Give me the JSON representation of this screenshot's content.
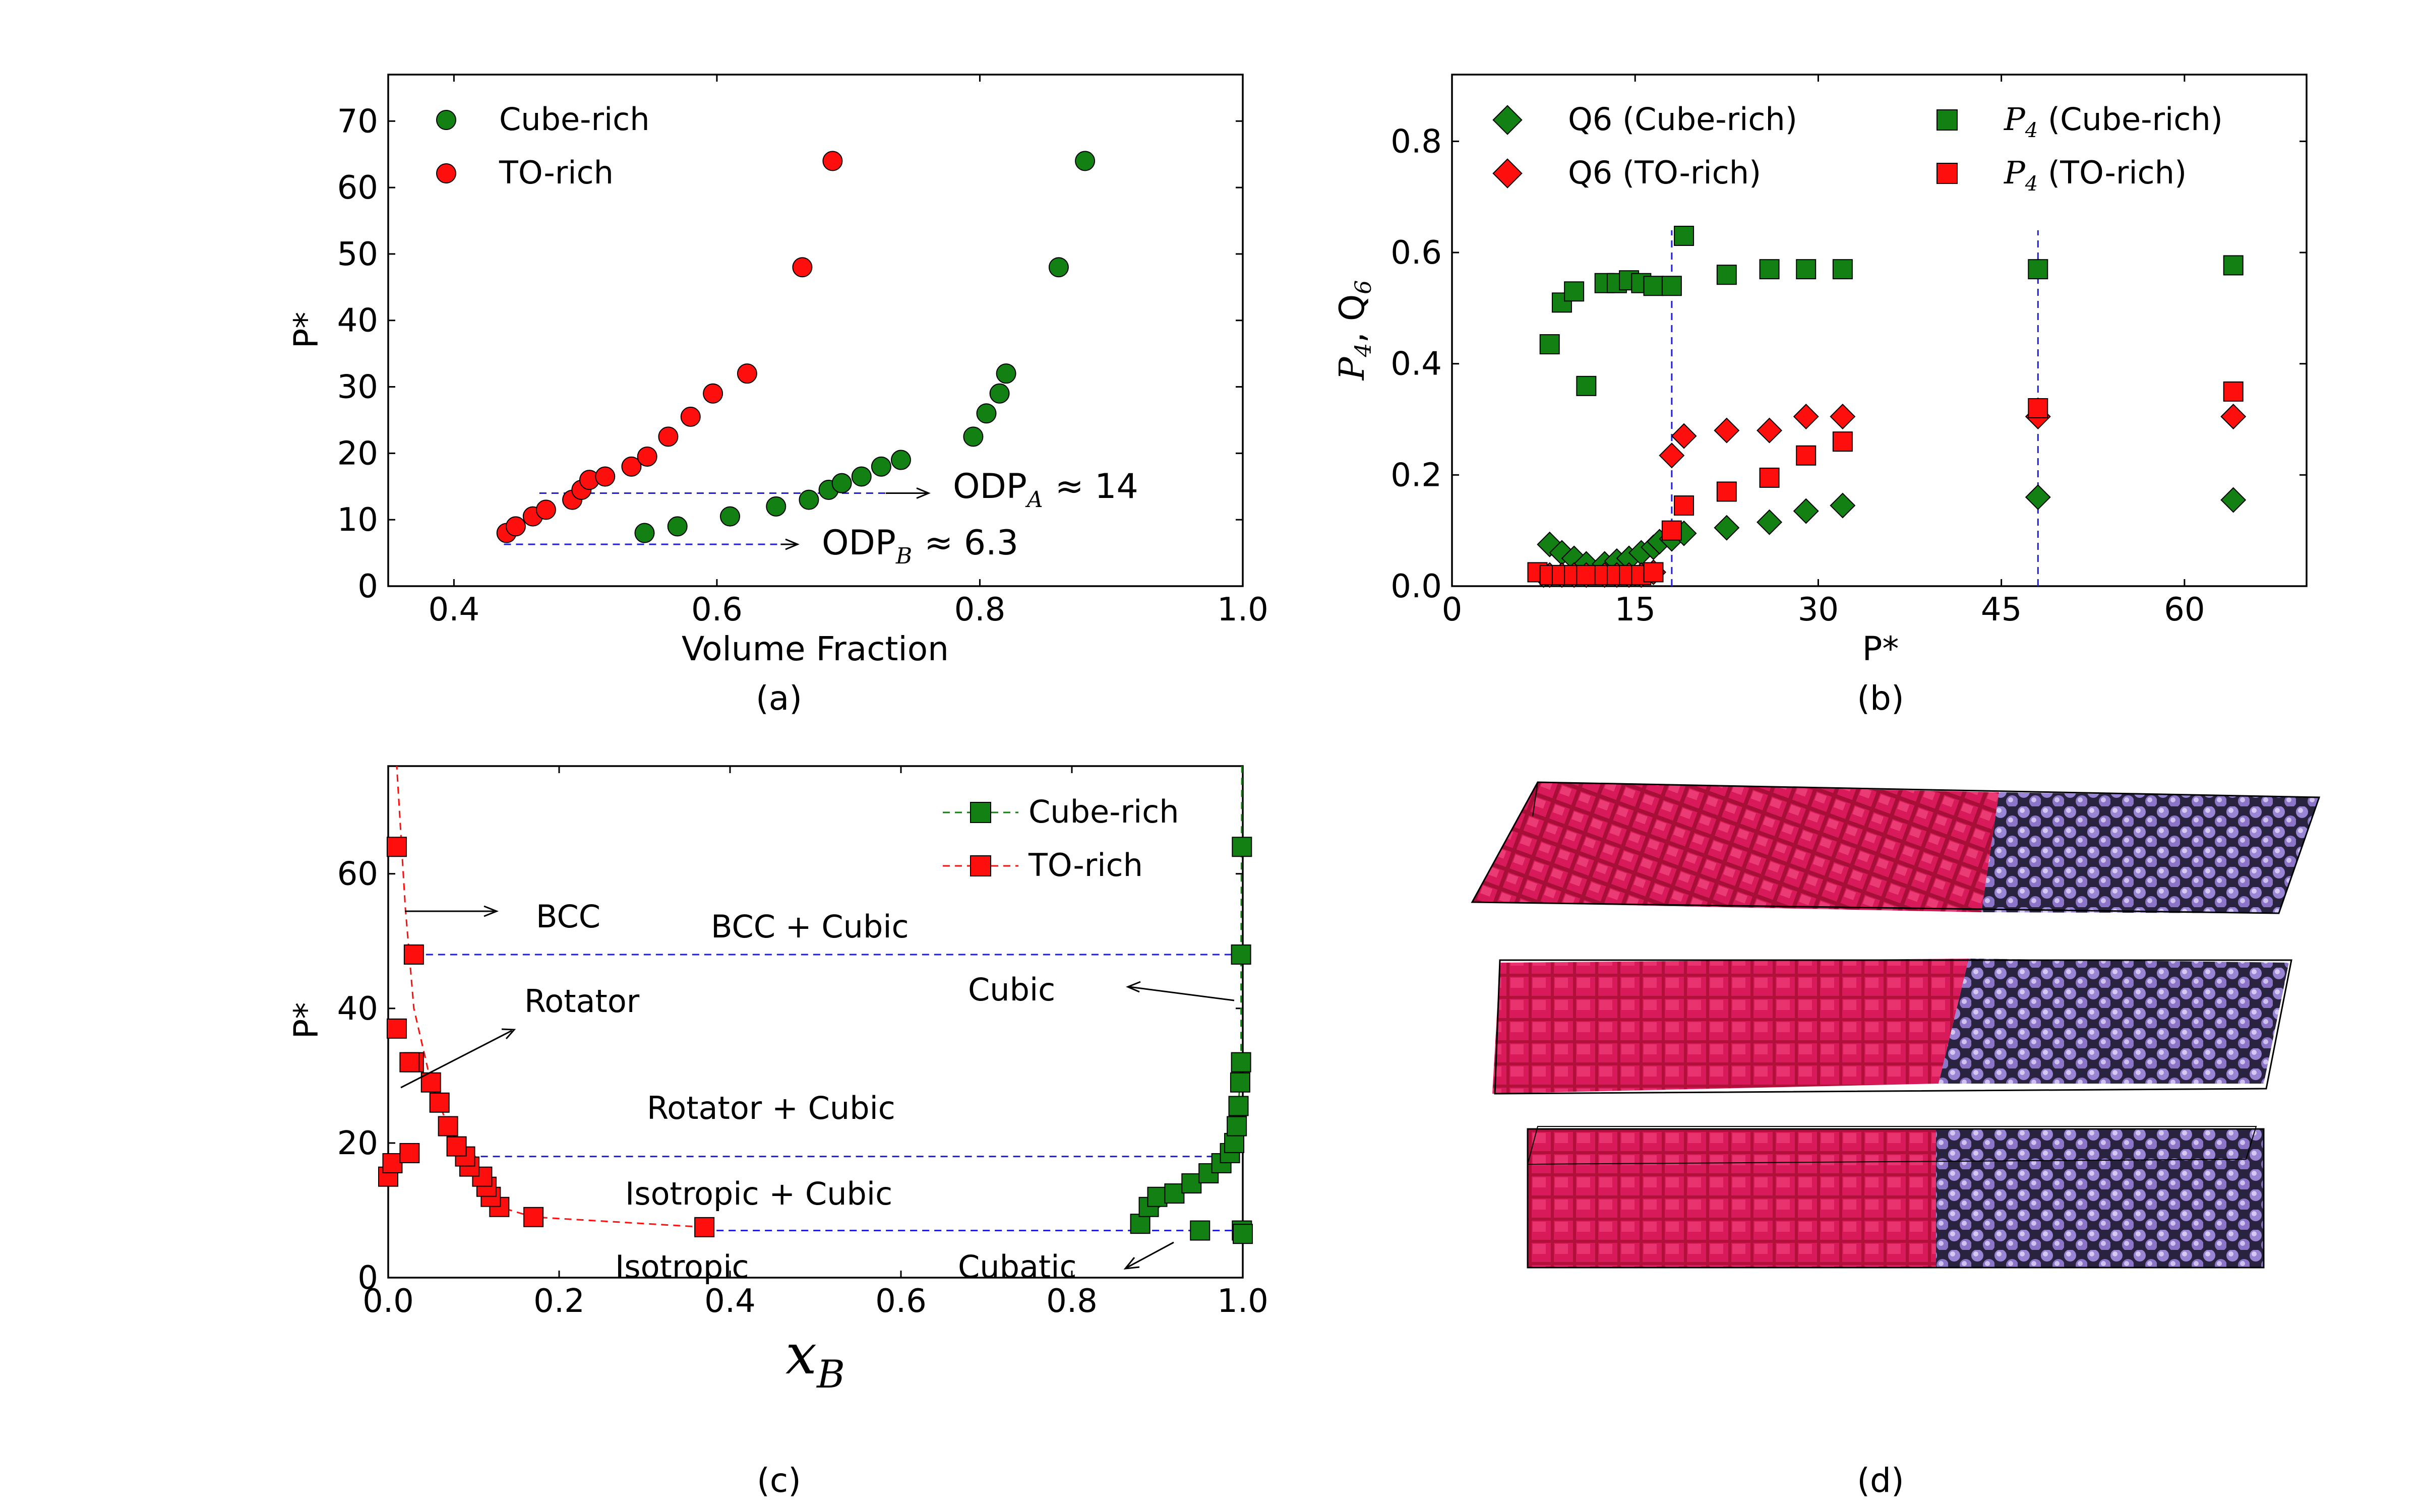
{
  "colors": {
    "green": "#128012",
    "red": "#ff0e0e",
    "blue": "#1f1fdd",
    "crimson": "#c8143c",
    "purple": "#9a84d4"
  },
  "panel_labels": [
    "(a)",
    "(b)",
    "(c)",
    "(d)"
  ],
  "chart_data": [
    {
      "id": "a",
      "type": "scatter",
      "xlabel": "Volume Fraction",
      "ylabel": "P*",
      "xlim": [
        0.35,
        1.0
      ],
      "ylim": [
        0,
        77
      ],
      "xticks": [
        "0.4",
        "0.6",
        "0.8",
        "1.0"
      ],
      "yticks": [
        "0",
        "10",
        "20",
        "30",
        "40",
        "50",
        "60",
        "70"
      ],
      "legend": [
        "Cube-rich",
        "TO-rich"
      ],
      "series": [
        {
          "name": "Cube-rich",
          "marker": "circle",
          "color": "green",
          "x": [
            0.545,
            0.57,
            0.61,
            0.645,
            0.67,
            0.685,
            0.695,
            0.71,
            0.725,
            0.74,
            0.795,
            0.805,
            0.815,
            0.82,
            0.86,
            0.88
          ],
          "y": [
            8,
            9,
            10.5,
            12,
            13,
            14.5,
            15.5,
            16.5,
            18,
            19,
            22.5,
            26,
            29,
            32,
            48,
            64
          ]
        },
        {
          "name": "TO-rich",
          "marker": "circle",
          "color": "red",
          "x": [
            0.44,
            0.447,
            0.46,
            0.47,
            0.49,
            0.497,
            0.503,
            0.515,
            0.535,
            0.547,
            0.563,
            0.58,
            0.597,
            0.623,
            0.665,
            0.688
          ],
          "y": [
            8,
            9,
            10.5,
            11.5,
            13,
            14.5,
            16,
            16.5,
            18,
            19.5,
            22.5,
            25.5,
            29,
            32,
            48,
            64
          ]
        }
      ],
      "hlines": [
        {
          "y": 14,
          "x": [
            0.465,
            0.74
          ],
          "text": "ODP",
          "sub": "A",
          "value": "≈ 14"
        },
        {
          "y": 6.3,
          "x": [
            0.438,
            0.65
          ],
          "text": "ODP",
          "sub": "B",
          "value": "≈ 6.3"
        }
      ]
    },
    {
      "id": "b",
      "type": "scatter",
      "xlabel": "P*",
      "ylabel": "P",
      "ylabel_sub": "4",
      "ylabel_mid": ", Q",
      "ylabel_sub2": "6",
      "xlim": [
        0,
        70
      ],
      "ylim": [
        0,
        0.92
      ],
      "xticks": [
        "0",
        "15",
        "30",
        "45",
        "60"
      ],
      "yticks": [
        "0.0",
        "0.2",
        "0.4",
        "0.6",
        "0.8"
      ],
      "legend_texts": {
        "q6_cube": "Q6 (Cube-rich)",
        "q6_to": "Q6 (TO-rich)",
        "p4_cube": " (Cube-rich)",
        "p4_to": " (TO-rich)",
        "p4_sym": "P",
        "p4_sub": "4"
      },
      "series": [
        {
          "name": "P4 (Cube-rich)",
          "marker": "square",
          "color": "green",
          "x": [
            8,
            9,
            10,
            11,
            12.5,
            13.5,
            14.5,
            15.5,
            16.5,
            18,
            19,
            22.5,
            26,
            29,
            32,
            48,
            64
          ],
          "y": [
            0.435,
            0.51,
            0.53,
            0.36,
            0.545,
            0.545,
            0.55,
            0.545,
            0.54,
            0.54,
            0.63,
            0.56,
            0.57,
            0.57,
            0.57,
            0.57,
            0.577
          ]
        },
        {
          "name": "Q6 (Cube-rich)",
          "marker": "diamond",
          "color": "green",
          "x": [
            7.5,
            8,
            9,
            10,
            11,
            12.5,
            13.5,
            14.5,
            15.5,
            16.5,
            17,
            18,
            19,
            22.5,
            26,
            29,
            32,
            48,
            64
          ],
          "y": [
            0.02,
            0.075,
            0.06,
            0.05,
            0.04,
            0.04,
            0.045,
            0.05,
            0.06,
            0.07,
            0.08,
            0.085,
            0.095,
            0.105,
            0.115,
            0.135,
            0.145,
            0.16,
            0.155
          ]
        },
        {
          "name": "Q6 (TO-rich)",
          "marker": "diamond",
          "color": "red",
          "x": [
            8,
            9,
            10,
            11,
            12.5,
            13.5,
            14.5,
            15.5,
            16.5,
            18,
            19,
            22.5,
            26,
            29,
            32,
            48,
            64
          ],
          "y": [
            0.02,
            0.02,
            0.02,
            0.02,
            0.02,
            0.02,
            0.02,
            0.02,
            0.025,
            0.235,
            0.27,
            0.28,
            0.28,
            0.305,
            0.305,
            0.305,
            0.305
          ]
        },
        {
          "name": "P4 (TO-rich)",
          "marker": "square",
          "color": "red",
          "x": [
            7,
            8,
            9,
            10,
            11,
            12.5,
            13.5,
            14.5,
            15.5,
            16.5,
            18,
            19,
            22.5,
            26,
            29,
            32,
            48,
            64
          ],
          "y": [
            0.025,
            0.02,
            0.02,
            0.02,
            0.02,
            0.02,
            0.02,
            0.02,
            0.02,
            0.025,
            0.1,
            0.145,
            0.17,
            0.195,
            0.235,
            0.26,
            0.32,
            0.35
          ]
        }
      ],
      "vlines": [
        18,
        48
      ]
    },
    {
      "id": "c",
      "type": "line",
      "xlabel": "x",
      "xlabel_sub": "B",
      "ylabel": "P*",
      "xlim": [
        0,
        1.0
      ],
      "ylim": [
        0,
        76
      ],
      "xticks": [
        "0.0",
        "0.2",
        "0.4",
        "0.6",
        "0.8",
        "1.0"
      ],
      "yticks": [
        "0",
        "20",
        "40",
        "60"
      ],
      "legend": [
        "Cube-rich",
        "TO-rich"
      ],
      "series": [
        {
          "name": "TO-rich",
          "marker": "square",
          "color": "red",
          "x": [
            0.37,
            0.17,
            0.13,
            0.12,
            0.115,
            0.11,
            0.095,
            0.09,
            0.08,
            0.07,
            0.06,
            0.05,
            0.03,
            0.0,
            0.005,
            0.025,
            0.03,
            0.025,
            0.01,
            0.01
          ],
          "y": [
            7.5,
            9,
            10.5,
            12,
            13.5,
            15,
            16.5,
            18,
            19.5,
            22.5,
            26,
            29,
            32,
            15,
            17,
            18.5,
            48,
            32,
            37,
            64
          ]
        },
        {
          "name": "Cube-rich",
          "marker": "square",
          "color": "green",
          "x": [
            0.88,
            0.89,
            0.9,
            0.92,
            0.94,
            0.96,
            0.975,
            0.985,
            0.99,
            0.993,
            0.995,
            0.997,
            0.998,
            0.998,
            0.999,
            0.999,
            0.95,
            1.0
          ],
          "y": [
            8,
            10.5,
            12,
            12.5,
            14,
            15.5,
            17,
            18.5,
            20,
            22.5,
            25.5,
            29,
            32,
            48,
            64,
            7,
            7,
            6.5
          ]
        }
      ],
      "tie_lines": [
        {
          "y": 48,
          "x": [
            0.03,
            1.0
          ]
        },
        {
          "y": 18,
          "x": [
            0.08,
            1.0
          ]
        },
        {
          "y": 7,
          "x": [
            0.37,
            0.99
          ]
        }
      ],
      "annotations": [
        "BCC",
        "BCC + Cubic",
        "Rotator",
        "Cubic",
        "Rotator + Cubic",
        "Isotropic + Cubic",
        "Isotropic",
        "Cubatic"
      ]
    }
  ],
  "panel_d": {
    "type": "image",
    "description_label": "simulation-snapshots"
  }
}
